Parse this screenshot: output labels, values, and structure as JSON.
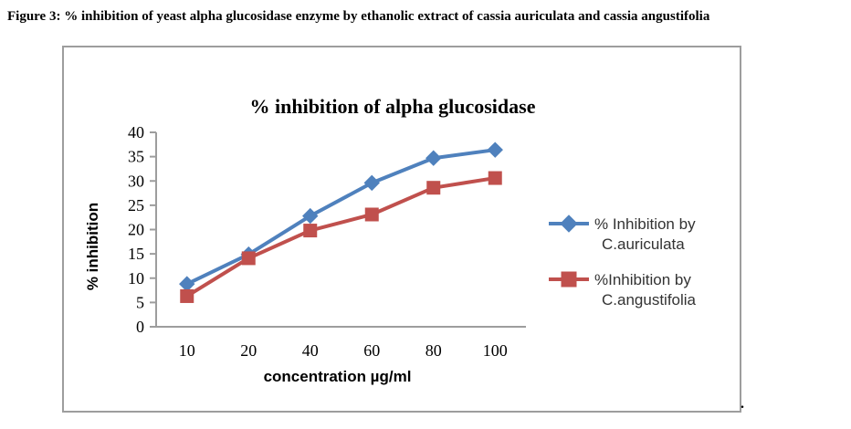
{
  "figure_caption": "Figure 3: % inhibition of yeast alpha glucosidase enzyme by ethanolic extract of cassia auriculata and cassia angustifolia",
  "trailing_period": ".",
  "chart_data": {
    "type": "line",
    "title": "% inhibition of alpha glucosidase",
    "xlabel": "concentration µg/ml",
    "ylabel": "% inhibition",
    "categories": [
      "10",
      "20",
      "40",
      "60",
      "80",
      "100"
    ],
    "ylim": [
      0,
      40
    ],
    "ytick_step": 5,
    "grid": false,
    "legend_position": "right",
    "axis_color": "#9d9d9d",
    "text_color": "#000000",
    "legend_text_color": "#333333",
    "series": [
      {
        "name": "% Inhibition by C.auriculata",
        "legend_lines": [
          "% Inhibition by",
          "C.auriculata"
        ],
        "values": [
          8.8,
          14.9,
          22.8,
          29.6,
          34.7,
          36.4
        ],
        "color": "#4F81BD",
        "marker": "diamond"
      },
      {
        "name": "%Inhibition by C.angustifolia",
        "legend_lines": [
          "%Inhibition by",
          "C.angustifolia"
        ],
        "values": [
          6.3,
          14.1,
          19.8,
          23.1,
          28.6,
          30.6
        ],
        "color": "#C0504D",
        "marker": "square"
      }
    ]
  }
}
